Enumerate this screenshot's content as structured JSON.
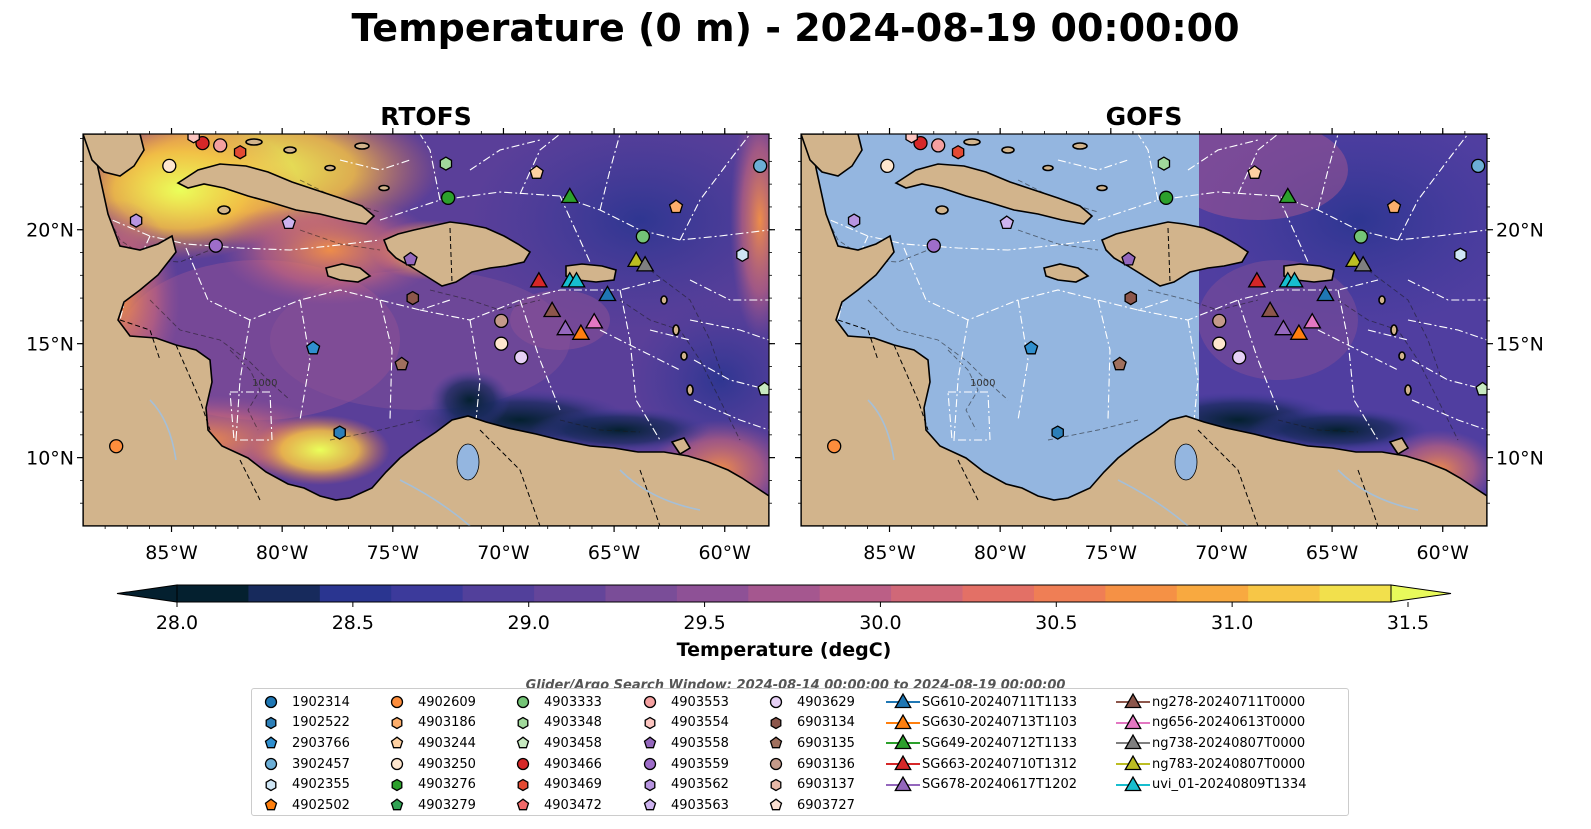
{
  "title": "Temperature (0 m) - 2024-08-19 00:00:00",
  "panels": [
    {
      "title": "RTOFS"
    },
    {
      "title": "GOFS"
    }
  ],
  "map": {
    "lon_range": [
      -89,
      -58
    ],
    "lat_range": [
      7,
      24.2
    ],
    "lon_ticks": [
      "85°W",
      "80°W",
      "75°W",
      "70°W",
      "65°W",
      "60°W"
    ],
    "lat_ticks": [
      "20°N",
      "15°N",
      "10°N"
    ],
    "contour_labels": [
      "1000"
    ],
    "colors": {
      "land": "#d2b48c",
      "masked_ocean": "#94b6e0",
      "rivers": "#a6bfd6",
      "eez_lines": "#ffffff"
    }
  },
  "colorbar": {
    "label": "Temperature (degC)",
    "ticks": [
      "28.0",
      "28.5",
      "29.0",
      "29.5",
      "30.0",
      "30.5",
      "31.0",
      "31.5"
    ],
    "range": [
      28.0,
      31.5
    ],
    "extend": "both",
    "colormap": "thermal",
    "colors": [
      "#04202f",
      "#172a5c",
      "#2a3590",
      "#3c3a9b",
      "#52409b",
      "#64459a",
      "#7a4d98",
      "#8e5196",
      "#a5578f",
      "#bb5f86",
      "#d06878",
      "#e37066",
      "#ef7e55",
      "#f59145",
      "#f8a940",
      "#f7c646",
      "#f2e04c"
    ],
    "over_color": "#e8fa5b"
  },
  "search_window": "Glider/Argo Search Window: 2024-08-14 00:00:00 to 2024-08-19 00:00:00",
  "legend": {
    "columns": [
      [
        {
          "label": "1902314",
          "marker": "circle",
          "color": "#1f77b4"
        },
        {
          "label": "1902522",
          "marker": "hexagon",
          "color": "#2c7fb8"
        },
        {
          "label": "2903766",
          "marker": "pentagon",
          "color": "#2f8fcf"
        },
        {
          "label": "3902457",
          "marker": "circle",
          "color": "#6baed6"
        },
        {
          "label": "4902355",
          "marker": "hexagon",
          "color": "#cfe6f5"
        },
        {
          "label": "4902502",
          "marker": "pentagon",
          "color": "#ff7f0e"
        }
      ],
      [
        {
          "label": "4902609",
          "marker": "circle",
          "color": "#fd8d3c"
        },
        {
          "label": "4903186",
          "marker": "hexagon",
          "color": "#fdae6b"
        },
        {
          "label": "4903244",
          "marker": "pentagon",
          "color": "#fdd0a2"
        },
        {
          "label": "4903250",
          "marker": "circle",
          "color": "#fee6ce"
        },
        {
          "label": "4903276",
          "marker": "hexagon",
          "color": "#2ca02c"
        },
        {
          "label": "4903279",
          "marker": "pentagon",
          "color": "#31a354"
        }
      ],
      [
        {
          "label": "4903333",
          "marker": "circle",
          "color": "#74c476"
        },
        {
          "label": "4903348",
          "marker": "hexagon",
          "color": "#a1d99b"
        },
        {
          "label": "4903458",
          "marker": "pentagon",
          "color": "#c7e9c0"
        },
        {
          "label": "4903466",
          "marker": "circle",
          "color": "#d62728"
        },
        {
          "label": "4903469",
          "marker": "hexagon",
          "color": "#e34a33"
        },
        {
          "label": "4903472",
          "marker": "pentagon",
          "color": "#f06a6a"
        }
      ],
      [
        {
          "label": "4903553",
          "marker": "circle",
          "color": "#f4a0a0"
        },
        {
          "label": "4903554",
          "marker": "hexagon",
          "color": "#fcc5c0"
        },
        {
          "label": "4903558",
          "marker": "pentagon",
          "color": "#9467bd"
        },
        {
          "label": "4903559",
          "marker": "circle",
          "color": "#9e6dc9"
        },
        {
          "label": "4903562",
          "marker": "hexagon",
          "color": "#b794e0"
        },
        {
          "label": "4903563",
          "marker": "pentagon",
          "color": "#cdb3ef"
        }
      ],
      [
        {
          "label": "4903629",
          "marker": "circle",
          "color": "#e6d0f5"
        },
        {
          "label": "6903134",
          "marker": "hexagon",
          "color": "#8c564b"
        },
        {
          "label": "6903135",
          "marker": "pentagon",
          "color": "#a0705e"
        },
        {
          "label": "6903136",
          "marker": "circle",
          "color": "#c49a8a"
        },
        {
          "label": "6903137",
          "marker": "hexagon",
          "color": "#e7b9a8"
        },
        {
          "label": "6903727",
          "marker": "pentagon",
          "color": "#fbe0d2"
        }
      ],
      [
        {
          "label": "SG610-20240711T1133",
          "marker": "triangle-line",
          "color": "#1f77b4"
        },
        {
          "label": "SG630-20240713T1103",
          "marker": "triangle-line",
          "color": "#ff7f0e"
        },
        {
          "label": "SG649-20240712T1133",
          "marker": "triangle-line",
          "color": "#2ca02c"
        },
        {
          "label": "SG663-20240710T1312",
          "marker": "triangle-line",
          "color": "#d62728"
        },
        {
          "label": "SG678-20240617T1202",
          "marker": "triangle-line",
          "color": "#9467bd"
        }
      ],
      [
        {
          "label": "ng278-20240711T0000",
          "marker": "triangle-line",
          "color": "#8c564b"
        },
        {
          "label": "ng656-20240613T0000",
          "marker": "triangle-line",
          "color": "#e377c2"
        },
        {
          "label": "ng738-20240807T0000",
          "marker": "triangle-line",
          "color": "#7f7f7f"
        },
        {
          "label": "ng783-20240807T0000",
          "marker": "triangle-line",
          "color": "#bcbd22"
        },
        {
          "label": "uvi_01-20240809T1334",
          "marker": "triangle-line",
          "color": "#17becf"
        }
      ]
    ]
  },
  "floats": [
    {
      "lon": -85.1,
      "lat": 22.8,
      "marker": "circle",
      "color": "#fee6ce"
    },
    {
      "lon": -81.9,
      "lat": 23.4,
      "marker": "hexagon",
      "color": "#e34a33"
    },
    {
      "lon": -82.8,
      "lat": 23.7,
      "marker": "circle",
      "color": "#f4a0a0"
    },
    {
      "lon": -83.6,
      "lat": 23.8,
      "marker": "circle",
      "color": "#d62728"
    },
    {
      "lon": -84.0,
      "lat": 24.1,
      "marker": "hexagon",
      "color": "#fcc5c0"
    },
    {
      "lon": -72.6,
      "lat": 22.9,
      "marker": "hexagon",
      "color": "#a1d99b"
    },
    {
      "lon": -72.5,
      "lat": 21.4,
      "marker": "circle",
      "color": "#2ca02c"
    },
    {
      "lon": -68.5,
      "lat": 22.5,
      "marker": "pentagon",
      "color": "#fdd0a2"
    },
    {
      "lon": -62.2,
      "lat": 21.0,
      "marker": "pentagon",
      "color": "#fdae6b"
    },
    {
      "lon": -86.6,
      "lat": 20.4,
      "marker": "hexagon",
      "color": "#b794e0"
    },
    {
      "lon": -83.0,
      "lat": 19.3,
      "marker": "circle",
      "color": "#9e6dc9"
    },
    {
      "lon": -79.7,
      "lat": 20.3,
      "marker": "pentagon",
      "color": "#cdb3ef"
    },
    {
      "lon": -63.7,
      "lat": 19.7,
      "marker": "circle",
      "color": "#74c476"
    },
    {
      "lon": -59.2,
      "lat": 18.9,
      "marker": "hexagon",
      "color": "#cfe6f5"
    },
    {
      "lon": -58.4,
      "lat": 22.8,
      "marker": "circle",
      "color": "#6baed6"
    },
    {
      "lon": -74.2,
      "lat": 18.7,
      "marker": "pentagon",
      "color": "#9467bd"
    },
    {
      "lon": -74.1,
      "lat": 17.0,
      "marker": "hexagon",
      "color": "#8c564b"
    },
    {
      "lon": -70.1,
      "lat": 16.0,
      "marker": "circle",
      "color": "#c49a8a"
    },
    {
      "lon": -70.1,
      "lat": 15.0,
      "marker": "circle",
      "color": "#fee6ce"
    },
    {
      "lon": -69.2,
      "lat": 14.4,
      "marker": "circle",
      "color": "#e6d0f5"
    },
    {
      "lon": -78.6,
      "lat": 14.8,
      "marker": "pentagon",
      "color": "#2f8fcf"
    },
    {
      "lon": -74.6,
      "lat": 14.1,
      "marker": "pentagon",
      "color": "#a0705e"
    },
    {
      "lon": -77.4,
      "lat": 11.1,
      "marker": "hexagon",
      "color": "#2c7fb8"
    },
    {
      "lon": -87.5,
      "lat": 10.5,
      "marker": "circle",
      "color": "#fd8d3c"
    },
    {
      "lon": -58.2,
      "lat": 13.0,
      "marker": "pentagon",
      "color": "#c7e9c0"
    }
  ],
  "gliders": [
    {
      "lon": -68.4,
      "lat": 17.7,
      "color": "#d62728"
    },
    {
      "lon": -67.0,
      "lat": 17.7,
      "color": "#17becf"
    },
    {
      "lon": -66.7,
      "lat": 17.7,
      "color": "#17becf"
    },
    {
      "lon": -65.3,
      "lat": 17.1,
      "color": "#1f77b4"
    },
    {
      "lon": -67.0,
      "lat": 21.4,
      "color": "#2ca02c"
    },
    {
      "lon": -64.0,
      "lat": 18.6,
      "color": "#bcbd22"
    },
    {
      "lon": -63.6,
      "lat": 18.4,
      "color": "#7f7f7f"
    },
    {
      "lon": -67.8,
      "lat": 16.4,
      "color": "#8c564b"
    },
    {
      "lon": -67.2,
      "lat": 15.6,
      "color": "#9467bd"
    },
    {
      "lon": -66.5,
      "lat": 15.4,
      "color": "#ff7f0e"
    },
    {
      "lon": -65.9,
      "lat": 15.9,
      "color": "#e377c2"
    }
  ]
}
